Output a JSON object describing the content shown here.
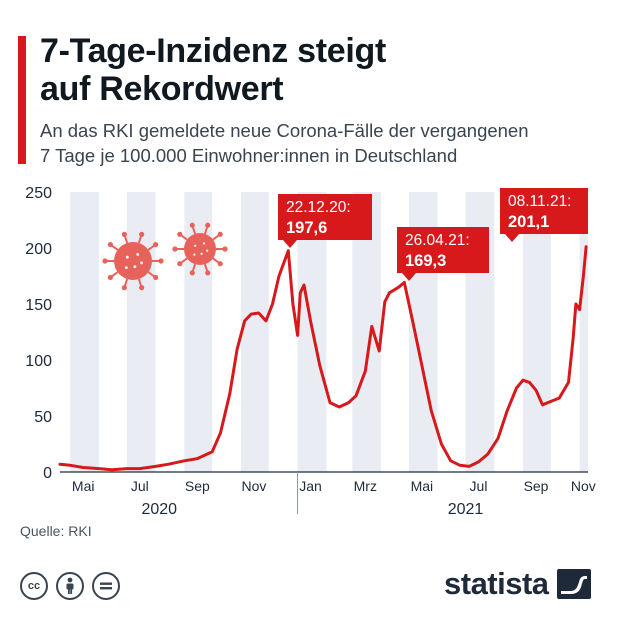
{
  "header": {
    "title_line1": "7-Tage-Inzidenz steigt",
    "title_line2": "auf Rekordwert",
    "subtitle_line1": "An das RKI gemeldete neue Corona-Fälle der vergangenen",
    "subtitle_line2": "7 Tage je 100.000 Einwohner:innen in Deutschland"
  },
  "footer": {
    "source": "Quelle: RKI",
    "brand": "statista",
    "license_icons": [
      "cc-icon",
      "attribution-icon",
      "no-derivatives-icon"
    ]
  },
  "colors": {
    "accent": "#d7191c",
    "line": "#d7191c",
    "band": "#e9edf3",
    "text": "#1e2a3a",
    "virus": "#e8625c"
  },
  "chart_data": {
    "type": "line",
    "title": "",
    "xlabel": "",
    "ylabel": "",
    "ylim": [
      0,
      250
    ],
    "xlim": [
      "2020-04-20",
      "2021-11-10"
    ],
    "yticks": [
      0,
      50,
      100,
      150,
      200,
      250
    ],
    "xticks": [
      {
        "label": "Mai",
        "date": "2020-05-15"
      },
      {
        "label": "Jul",
        "date": "2020-07-15"
      },
      {
        "label": "Sep",
        "date": "2020-09-15"
      },
      {
        "label": "Nov",
        "date": "2020-11-15"
      },
      {
        "label": "Jan",
        "date": "2021-01-15"
      },
      {
        "label": "Mrz",
        "date": "2021-03-15"
      },
      {
        "label": "Mai",
        "date": "2021-05-15"
      },
      {
        "label": "Jul",
        "date": "2021-07-15"
      },
      {
        "label": "Sep",
        "date": "2021-09-15"
      },
      {
        "label": "Nov",
        "date": "2021-11-05"
      }
    ],
    "years": [
      {
        "label": "2020",
        "date": "2020-08-05"
      },
      {
        "label": "2021",
        "date": "2021-07-01"
      }
    ],
    "grid": false,
    "series": [
      {
        "x": [
          "2020-04-20",
          "2020-05-01",
          "2020-05-15",
          "2020-06-01",
          "2020-06-15",
          "2020-07-01",
          "2020-07-15",
          "2020-08-01",
          "2020-08-15",
          "2020-09-01",
          "2020-09-15",
          "2020-10-01",
          "2020-10-10",
          "2020-10-20",
          "2020-10-28",
          "2020-11-05",
          "2020-11-12",
          "2020-11-20",
          "2020-11-28",
          "2020-12-05",
          "2020-12-12",
          "2020-12-22",
          "2020-12-27",
          "2021-01-01",
          "2021-01-04",
          "2021-01-08",
          "2021-01-15",
          "2021-01-25",
          "2021-02-05",
          "2021-02-15",
          "2021-02-25",
          "2021-03-05",
          "2021-03-15",
          "2021-03-22",
          "2021-03-30",
          "2021-04-05",
          "2021-04-10",
          "2021-04-20",
          "2021-04-26",
          "2021-05-05",
          "2021-05-15",
          "2021-05-25",
          "2021-06-05",
          "2021-06-15",
          "2021-06-25",
          "2021-07-05",
          "2021-07-15",
          "2021-07-25",
          "2021-08-05",
          "2021-08-15",
          "2021-08-25",
          "2021-09-01",
          "2021-09-08",
          "2021-09-15",
          "2021-09-22",
          "2021-10-01",
          "2021-10-10",
          "2021-10-20",
          "2021-10-25",
          "2021-10-28",
          "2021-11-01",
          "2021-11-05",
          "2021-11-08"
        ],
        "y": [
          7,
          6,
          4,
          3,
          2,
          3,
          3,
          5,
          7,
          10,
          12,
          18,
          35,
          70,
          110,
          135,
          141,
          142,
          135,
          150,
          175,
          197.6,
          150,
          122,
          160,
          167,
          135,
          95,
          62,
          58,
          62,
          68,
          90,
          130,
          108,
          152,
          160,
          165,
          169.3,
          135,
          95,
          55,
          25,
          10,
          6,
          5,
          9,
          16,
          30,
          55,
          75,
          82,
          80,
          73,
          60,
          63,
          66,
          80,
          120,
          150,
          145,
          175,
          201.1
        ]
      }
    ],
    "annotations": [
      {
        "date_label": "22.12.20:",
        "value_label": "197,6",
        "x": "2020-12-22",
        "y": 197.6
      },
      {
        "date_label": "26.04.21:",
        "value_label": "169,3",
        "x": "2021-04-26",
        "y": 169.3
      },
      {
        "date_label": "08.11.21:",
        "value_label": "201,1",
        "x": "2021-11-08",
        "y": 201.1
      }
    ]
  }
}
